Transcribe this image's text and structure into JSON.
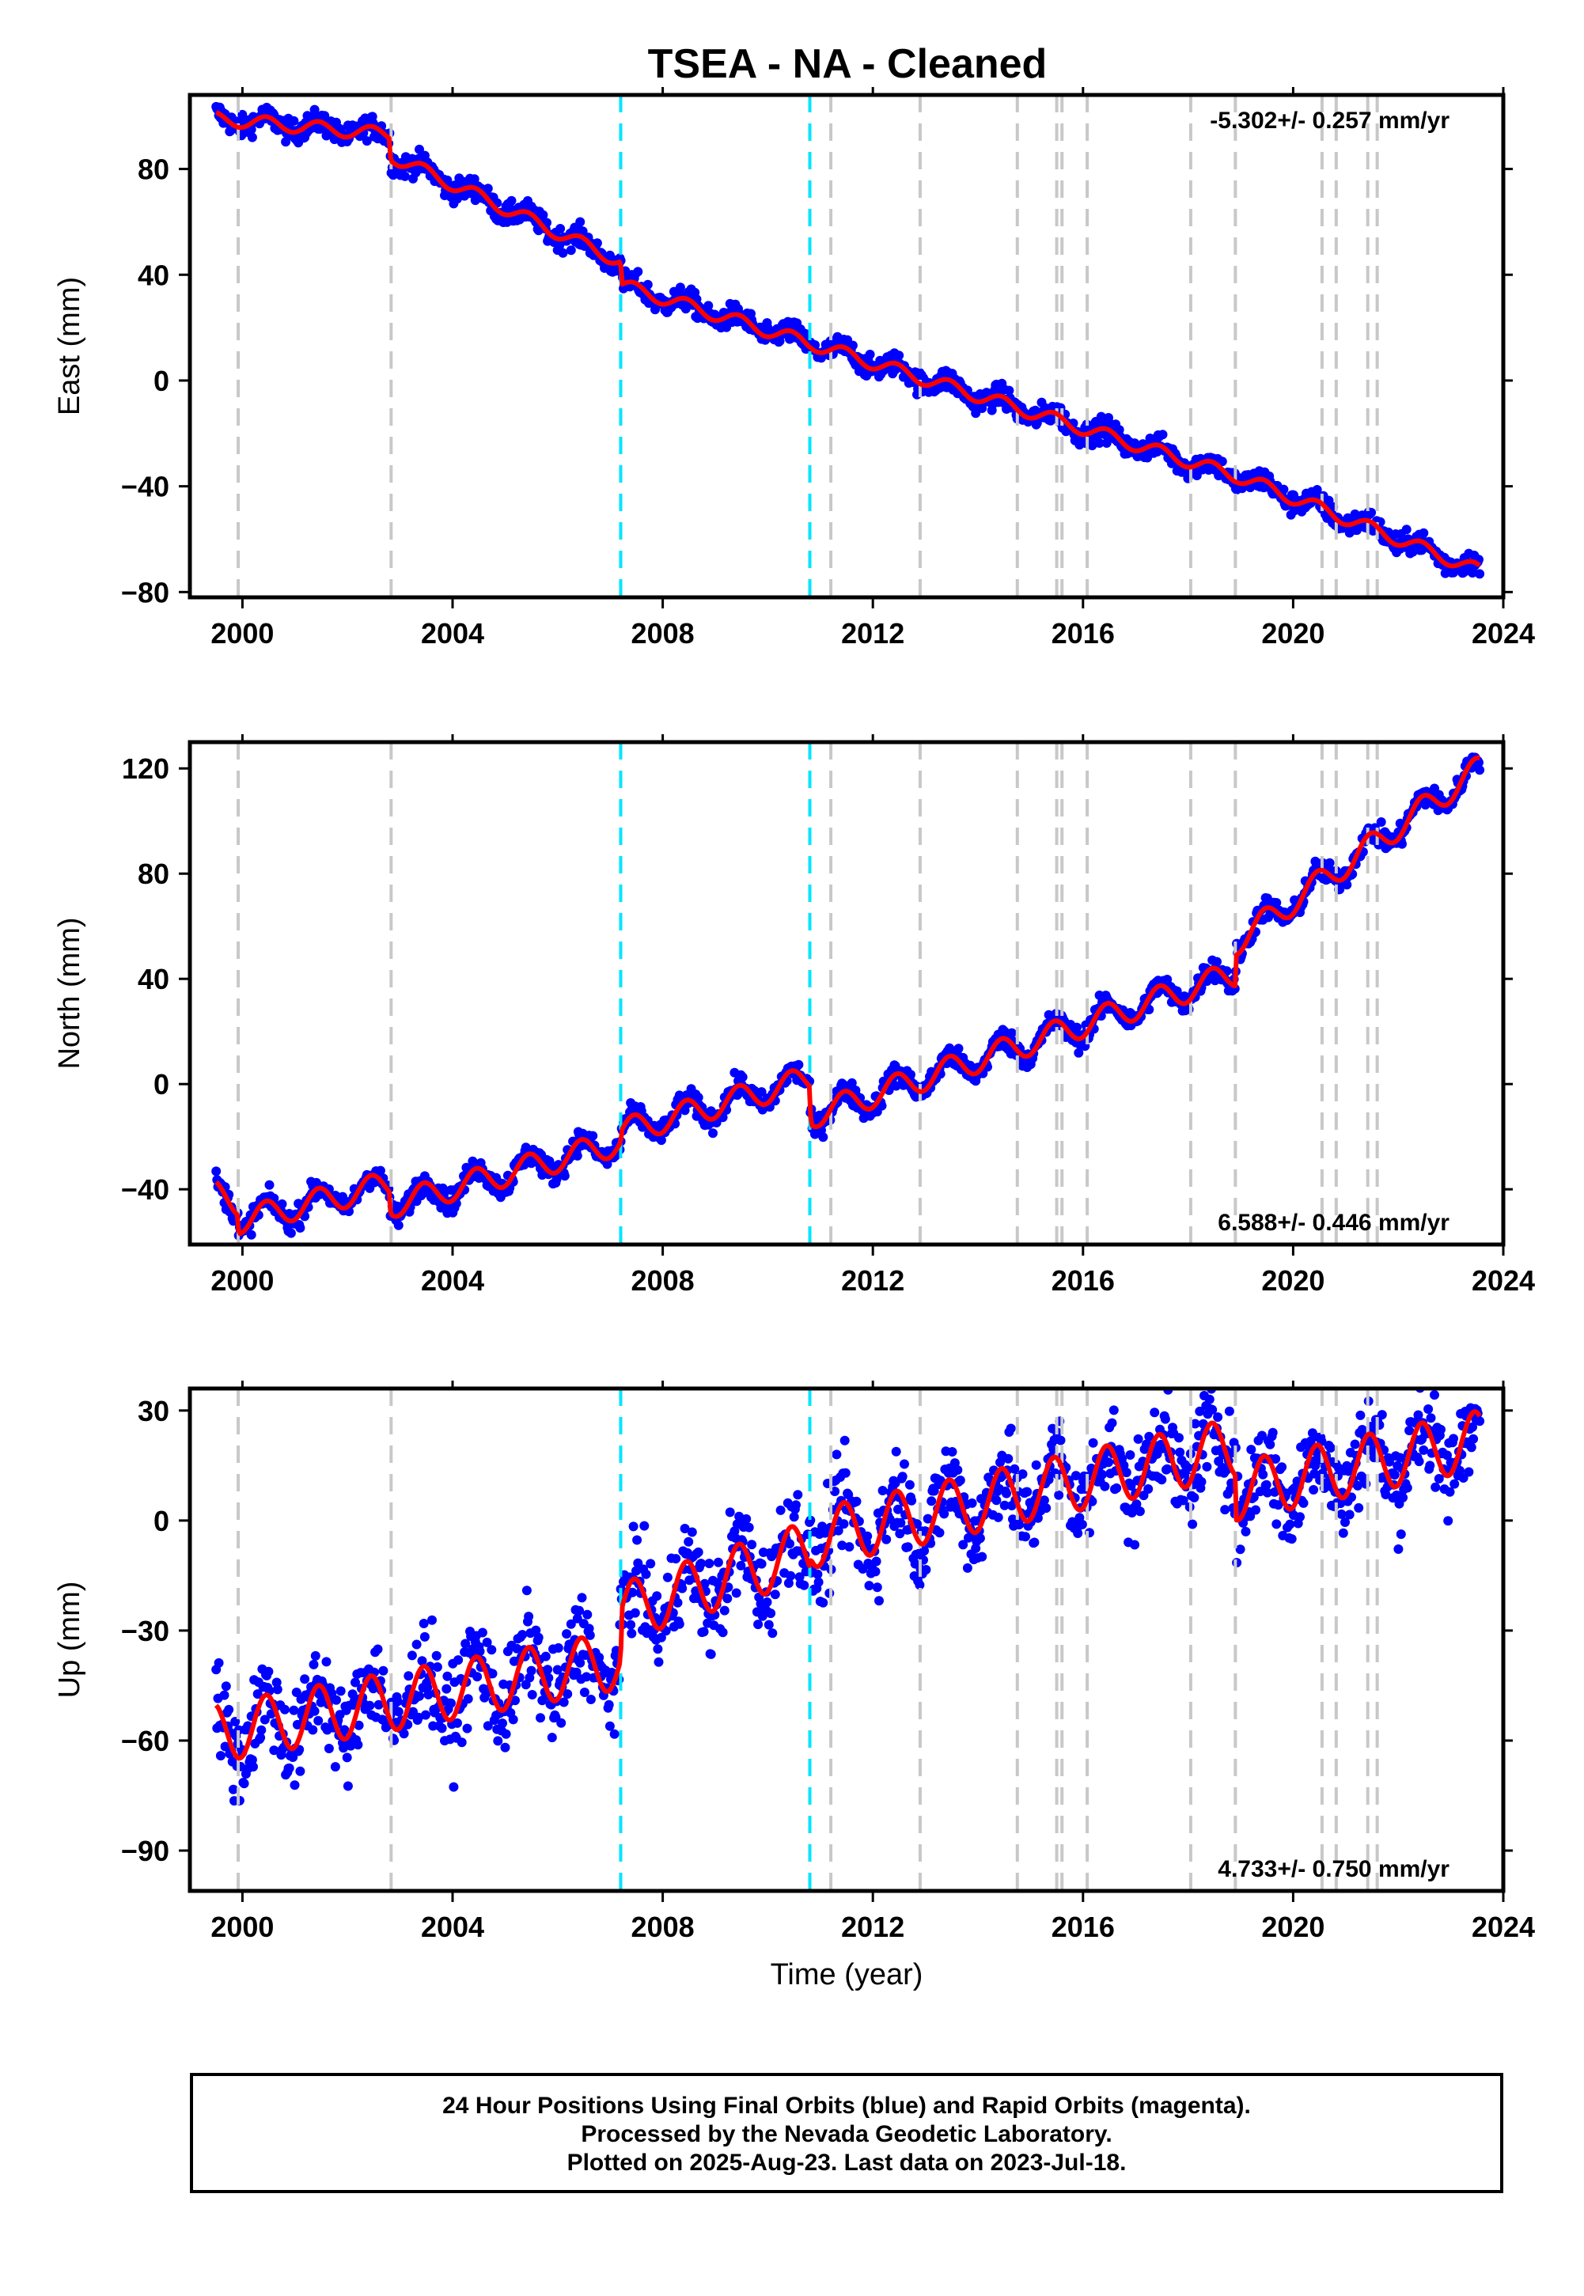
{
  "title": "TSEA  - NA - Cleaned",
  "footer": {
    "line1": "24 Hour Positions Using Final Orbits (blue) and Rapid Orbits (magenta).",
    "line2": "Processed by the Nevada Geodetic Laboratory.",
    "line3": "Plotted on 2025-Aug-23. Last data on 2023-Jul-18."
  },
  "colors": {
    "data": "#0000ff",
    "model": "#ff0000",
    "equipment_change": "#c8c8c8",
    "event": "#00e5ff"
  },
  "chart_data": [
    {
      "type": "scatter",
      "component": "East",
      "ylabel": "East (mm)",
      "xlabel": "",
      "rate_label": "-5.302+/- 0.257 mm/yr",
      "rate_position": "top-right",
      "xlim": [
        1999.0,
        2024.0
      ],
      "ylim": [
        -82,
        108
      ],
      "xticks": [
        "2000",
        "2004",
        "2008",
        "2012",
        "2016",
        "2020",
        "2024"
      ],
      "yticks": [
        "80",
        "40",
        "0",
        "−40",
        "−80"
      ],
      "ytick_values": [
        80,
        40,
        0,
        -40,
        -80
      ],
      "x_range": [
        1999.5,
        2023.55
      ],
      "model_points": [
        [
          1999.5,
          99
        ],
        [
          2002.8,
          93
        ],
        [
          2002.82,
          85
        ],
        [
          2007.2,
          45
        ],
        [
          2007.22,
          36
        ],
        [
          2010.8,
          14
        ],
        [
          2010.82,
          14
        ],
        [
          2018.9,
          -36
        ],
        [
          2018.92,
          -36
        ],
        [
          2023.55,
          -72
        ]
      ],
      "annual_amplitude": 2.5,
      "scatter_noise": 3,
      "grey_lines": [
        1999.92,
        2002.83,
        2011.2,
        2012.9,
        2014.75,
        2015.5,
        2015.6,
        2016.08,
        2018.05,
        2018.9,
        2020.55,
        2020.82,
        2021.42,
        2021.6
      ],
      "cyan_lines": [
        2007.2,
        2010.8
      ],
      "grid": false
    },
    {
      "type": "scatter",
      "component": "North",
      "ylabel": "North (mm)",
      "xlabel": "",
      "rate_label": "6.588+/- 0.446 mm/yr",
      "rate_position": "bottom-right",
      "xlim": [
        1999.0,
        2024.0
      ],
      "ylim": [
        -61,
        130
      ],
      "xticks": [
        "2000",
        "2004",
        "2008",
        "2012",
        "2016",
        "2020",
        "2024"
      ],
      "yticks": [
        "120",
        "80",
        "40",
        "0",
        "−40"
      ],
      "ytick_values": [
        120,
        80,
        40,
        0,
        -40
      ],
      "x_range": [
        1999.5,
        2023.55
      ],
      "model_points": [
        [
          1999.5,
          -42
        ],
        [
          1999.92,
          -45
        ],
        [
          1999.93,
          -52
        ],
        [
          2002.8,
          -38
        ],
        [
          2002.82,
          -46
        ],
        [
          2007.2,
          -22
        ],
        [
          2007.22,
          -18
        ],
        [
          2010.8,
          2
        ],
        [
          2010.82,
          -12
        ],
        [
          2018.9,
          42
        ],
        [
          2018.92,
          54
        ],
        [
          2023.55,
          120
        ]
      ],
      "annual_amplitude": 5,
      "scatter_noise": 3,
      "grey_lines": [
        1999.92,
        2002.83,
        2011.2,
        2012.9,
        2014.75,
        2015.5,
        2015.6,
        2016.08,
        2018.05,
        2018.9,
        2020.55,
        2020.82,
        2021.42,
        2021.6
      ],
      "cyan_lines": [
        2007.2,
        2010.8
      ],
      "grid": false
    },
    {
      "type": "scatter",
      "component": "Up",
      "ylabel": "Up (mm)",
      "xlabel": "Time (year)",
      "rate_label": "4.733+/- 0.750 mm/yr",
      "rate_position": "bottom-right",
      "xlim": [
        1999.0,
        2024.0
      ],
      "ylim": [
        -101,
        36
      ],
      "xticks": [
        "2000",
        "2004",
        "2008",
        "2012",
        "2016",
        "2020",
        "2024"
      ],
      "yticks": [
        "30",
        "0",
        "−30",
        "−60",
        "−90"
      ],
      "ytick_values": [
        30,
        0,
        -30,
        -60,
        -90
      ],
      "x_range": [
        1999.5,
        2023.55
      ],
      "model_points": [
        [
          1999.5,
          -58
        ],
        [
          2007.2,
          -38
        ],
        [
          2007.22,
          -25
        ],
        [
          2010.8,
          -8
        ],
        [
          2010.82,
          -5
        ],
        [
          2018.9,
          20
        ],
        [
          2018.92,
          8
        ],
        [
          2023.55,
          22
        ]
      ],
      "annual_amplitude": 8,
      "scatter_noise": 9,
      "grey_lines": [
        1999.92,
        2002.83,
        2011.2,
        2012.9,
        2014.75,
        2015.5,
        2015.6,
        2016.08,
        2018.05,
        2018.9,
        2020.55,
        2020.82,
        2021.42,
        2021.6
      ],
      "cyan_lines": [
        2007.2,
        2010.8
      ],
      "grid": false
    }
  ]
}
